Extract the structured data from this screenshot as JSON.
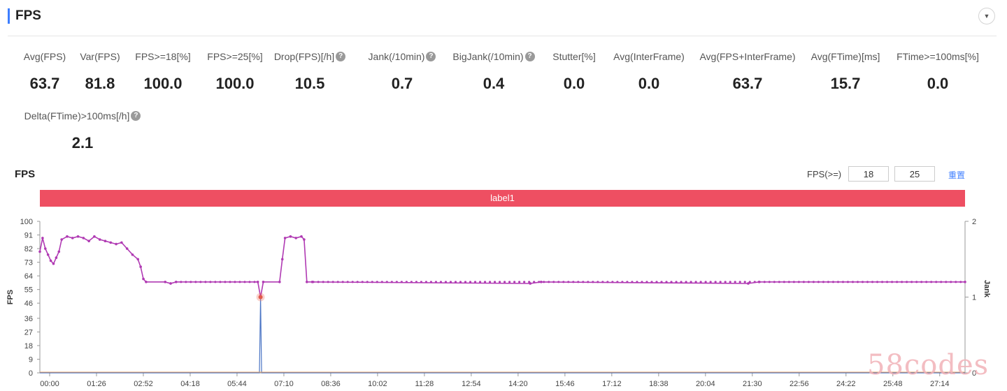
{
  "section": {
    "title": "FPS"
  },
  "metrics": [
    {
      "label": "Avg(FPS)",
      "value": "63.7",
      "help": false
    },
    {
      "label": "Var(FPS)",
      "value": "81.8",
      "help": false
    },
    {
      "label": "FPS>=18[%]",
      "value": "100.0",
      "help": false
    },
    {
      "label": "FPS>=25[%]",
      "value": "100.0",
      "help": false
    },
    {
      "label": "Drop(FPS)[/h]",
      "value": "10.5",
      "help": true
    },
    {
      "label": "Jank(/10min)",
      "value": "0.7",
      "help": true
    },
    {
      "label": "BigJank(/10min)",
      "value": "0.4",
      "help": true
    },
    {
      "label": "Stutter[%]",
      "value": "0.0",
      "help": false
    },
    {
      "label": "Avg(InterFrame)",
      "value": "0.0",
      "help": false
    },
    {
      "label": "Avg(FPS+InterFrame)",
      "value": "63.7",
      "help": false
    },
    {
      "label": "Avg(FTime)[ms]",
      "value": "15.7",
      "help": false
    },
    {
      "label": "FTime>=100ms[%]",
      "value": "0.0",
      "help": false
    },
    {
      "label": "Delta(FTime)>100ms[/h]",
      "value": "2.1",
      "help": true
    }
  ],
  "chart_panel": {
    "title": "FPS",
    "threshold_label": "FPS(>=)",
    "threshold_low": "18",
    "threshold_high": "25",
    "reset_label": "重置",
    "band_label": "label1"
  },
  "watermark": "58codes",
  "colors": {
    "accent": "#3d7eff",
    "series_fps": "#b03ab3",
    "series_jank": "#4a74c4",
    "band": "#ee4f62",
    "marker": "#f07a6a"
  },
  "icons": {
    "collapse": "chevron-down-icon",
    "help": "question-circle-icon"
  },
  "chart_data": {
    "type": "line",
    "xlabel": "",
    "ylabel": "FPS",
    "y2label": "Jank",
    "ylim": [
      0,
      100
    ],
    "y2lim": [
      0,
      2
    ],
    "yticks": [
      0,
      9,
      18,
      27,
      36,
      46,
      55,
      64,
      73,
      82,
      91,
      100
    ],
    "y2ticks": [
      0,
      1,
      2
    ],
    "xticks": [
      "00:00",
      "01:26",
      "02:52",
      "04:18",
      "05:44",
      "07:10",
      "08:36",
      "10:02",
      "11:28",
      "12:54",
      "14:20",
      "15:46",
      "17:12",
      "18:38",
      "20:04",
      "21:30",
      "22:56",
      "24:22",
      "25:48",
      "27:14"
    ],
    "x_unit": "seconds",
    "x_range": [
      0,
      1698
    ],
    "grid": false,
    "series": [
      {
        "name": "FPS",
        "axis": "left",
        "points": [
          [
            0,
            80
          ],
          [
            5,
            89
          ],
          [
            10,
            82
          ],
          [
            15,
            78
          ],
          [
            20,
            74
          ],
          [
            25,
            72
          ],
          [
            30,
            76
          ],
          [
            35,
            80
          ],
          [
            40,
            88
          ],
          [
            50,
            90
          ],
          [
            60,
            89
          ],
          [
            70,
            90
          ],
          [
            80,
            89
          ],
          [
            90,
            87
          ],
          [
            100,
            90
          ],
          [
            110,
            88
          ],
          [
            120,
            87
          ],
          [
            130,
            86
          ],
          [
            140,
            85
          ],
          [
            150,
            86
          ],
          [
            160,
            82
          ],
          [
            170,
            78
          ],
          [
            180,
            75
          ],
          [
            185,
            70
          ],
          [
            190,
            62
          ],
          [
            195,
            60
          ],
          [
            230,
            60
          ],
          [
            240,
            59
          ],
          [
            250,
            60
          ],
          [
            400,
            60
          ],
          [
            405,
            50
          ],
          [
            410,
            60
          ],
          [
            440,
            60
          ],
          [
            445,
            75
          ],
          [
            450,
            89
          ],
          [
            460,
            90
          ],
          [
            470,
            89
          ],
          [
            480,
            90
          ],
          [
            485,
            88
          ],
          [
            490,
            60
          ],
          [
            500,
            60
          ],
          [
            900,
            59
          ],
          [
            920,
            60
          ],
          [
            1300,
            59
          ],
          [
            1320,
            60
          ],
          [
            1698,
            60
          ]
        ]
      },
      {
        "name": "Jank",
        "axis": "right",
        "points": [
          [
            0,
            0
          ],
          [
            403,
            0
          ],
          [
            404,
            0.5
          ],
          [
            405,
            1.0
          ],
          [
            406,
            0.5
          ],
          [
            407,
            0
          ],
          [
            1698,
            0
          ]
        ]
      }
    ],
    "annotations": [
      {
        "x": 405,
        "y": 50,
        "type": "jank-marker"
      }
    ]
  }
}
